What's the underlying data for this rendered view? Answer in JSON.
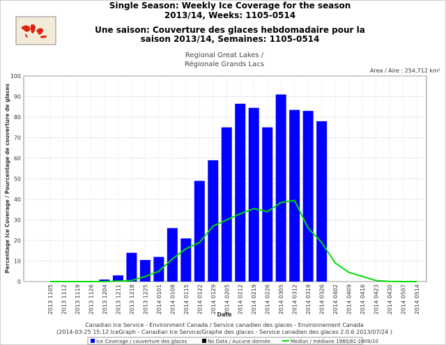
{
  "chart_data": {
    "type": "bar",
    "title": [
      "Single Season: Weekly Ice Coverage for the season",
      "2013/14, Weeks: 1105-0514",
      "Une saison: Couverture des glaces hebdomadaire pour la",
      "saison 2013/14, Semaines: 1105-0514"
    ],
    "subtitle": [
      "Regional Great Lakes /",
      "Régionale Grands Lacs"
    ],
    "area_label": "Area / Aire : 254,712 km²",
    "ylabel": "Percentage Ice Coverage / Pourcentage de couverture de glaces",
    "xlabel": "Date",
    "footer": [
      "Canadian Ice Service - Environment Canada / Service canadien des glaces - Environnement Canada",
      "(2014-03-25 15:12 IceGraph - Canadian Ice Service/Graphe des glaces - Service canadien des glaces 2.0.6 2013/07/24 )"
    ],
    "categories": [
      "2013 1105",
      "2013 1112",
      "2013 1119",
      "2013 1126",
      "2013 1204",
      "2013 1211",
      "2013 1218",
      "2013 1225",
      "2014 0101",
      "2014 0108",
      "2014 0115",
      "2014 0122",
      "2014 0129",
      "2014 0205",
      "2014 0212",
      "2014 0219",
      "2014 0226",
      "2014 0305",
      "2014 0312",
      "2014 0319",
      "2014 0326",
      "2014 0402",
      "2014 0409",
      "2014 0416",
      "2014 0423",
      "2014 0430",
      "2014 0507",
      "2014 0514"
    ],
    "series": [
      {
        "name": "Ice Coverage / couverture des glaces",
        "type": "bar",
        "color": "#0000ff",
        "values": [
          0,
          0,
          0,
          0,
          1,
          3,
          14,
          10.5,
          12,
          26,
          21,
          49,
          59,
          75,
          86.5,
          84.5,
          75,
          91,
          83.5,
          83,
          78,
          null,
          null,
          null,
          null,
          null,
          null,
          null
        ]
      },
      {
        "name": "No Data / Aucune donnée",
        "type": "bar",
        "color": "#000000",
        "values": [
          null,
          null,
          null,
          null,
          null,
          null,
          null,
          null,
          null,
          null,
          null,
          null,
          null,
          null,
          null,
          null,
          null,
          null,
          null,
          null,
          null,
          null,
          null,
          null,
          null,
          null,
          null,
          null
        ]
      },
      {
        "name": "Median / médiane 1980/81-2009/10",
        "type": "line",
        "color": "#00dd00",
        "values": [
          0,
          0,
          0,
          0,
          0,
          0.2,
          0.5,
          2.5,
          5,
          11,
          16,
          19,
          27,
          30,
          33,
          35.5,
          34,
          38.5,
          39.5,
          26,
          19,
          9,
          4.5,
          2.5,
          0.5,
          0.1,
          0,
          0
        ]
      }
    ],
    "ylim": [
      0,
      100
    ],
    "yticks": [
      0,
      10,
      20,
      30,
      40,
      50,
      60,
      70,
      80,
      90,
      100
    ],
    "grid": true
  }
}
